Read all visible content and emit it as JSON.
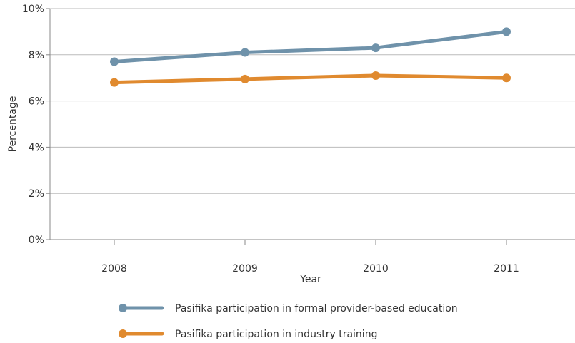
{
  "chart_data": {
    "type": "line",
    "title": "",
    "xlabel": "Year",
    "ylabel": "Percentage",
    "categories": [
      "2008",
      "2009",
      "2010",
      "2011"
    ],
    "y_ticks": [
      "0%",
      "2%",
      "4%",
      "6%",
      "8%",
      "10%"
    ],
    "ylim": [
      0,
      10
    ],
    "grid": "horizontal",
    "legend_position": "bottom",
    "series": [
      {
        "name": "Pasifika participation in formal provider-based education",
        "values": [
          7.7,
          8.1,
          8.3,
          9.0
        ],
        "color": "#6f92aa"
      },
      {
        "name": "Pasifika participation in industry training",
        "values": [
          6.8,
          6.95,
          7.1,
          7.0
        ],
        "color": "#e08a2f"
      }
    ]
  }
}
